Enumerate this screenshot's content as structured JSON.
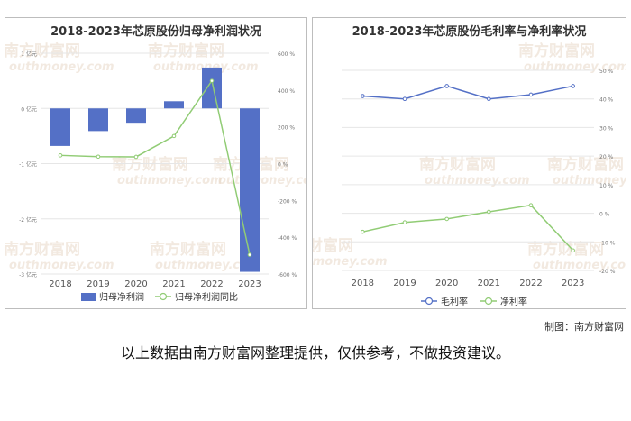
{
  "credit": "制图：南方财富网",
  "footer_note": "以上数据由南方财富网整理提供，仅供参考，不做投资建议。",
  "watermark": "南方财富网",
  "watermark_url": "outhmoney.com",
  "colors": {
    "bar": "#5470c6",
    "line_green": "#91cc75",
    "line_blue": "#5470c6"
  },
  "chart_data": [
    {
      "type": "bar",
      "title": "2018-2023年芯原股份归母净利润状况",
      "categories": [
        "2018",
        "2019",
        "2020",
        "2021",
        "2022",
        "2023"
      ],
      "y_left_ticks": [
        "1 亿元",
        "0 亿元",
        "-1 亿元",
        "-2 亿元",
        "-3 亿元"
      ],
      "y_right_ticks": [
        "600 %",
        "400 %",
        "200 %",
        "0 %",
        "-200 %",
        "-400 %",
        "-600 %"
      ],
      "ylim_left": [
        -3,
        1
      ],
      "ylim_right": [
        -600,
        600
      ],
      "series": [
        {
          "name": "归母净利润",
          "type": "bar",
          "axis": "left",
          "values": [
            -0.68,
            -0.41,
            -0.26,
            0.13,
            0.74,
            -2.96
          ]
        },
        {
          "name": "归母净利润同比",
          "type": "line",
          "axis": "right",
          "values": [
            45,
            38,
            37,
            150,
            450,
            -495
          ]
        }
      ],
      "legend": "bottom"
    },
    {
      "type": "line",
      "title": "2018-2023年芯原股份毛利率与净利率状况",
      "categories": [
        "2018",
        "2019",
        "2020",
        "2021",
        "2022",
        "2023"
      ],
      "y_ticks": [
        "50 %",
        "40 %",
        "30 %",
        "20 %",
        "10 %",
        "0 %",
        "-10 %",
        "-20 %"
      ],
      "ylim": [
        -20,
        50
      ],
      "series": [
        {
          "name": "毛利率",
          "values": [
            41,
            40,
            44.5,
            40,
            41.5,
            44.5
          ]
        },
        {
          "name": "净利率",
          "values": [
            -6.5,
            -3.2,
            -2,
            0.5,
            2.8,
            -13
          ]
        }
      ],
      "legend": "bottom"
    }
  ]
}
